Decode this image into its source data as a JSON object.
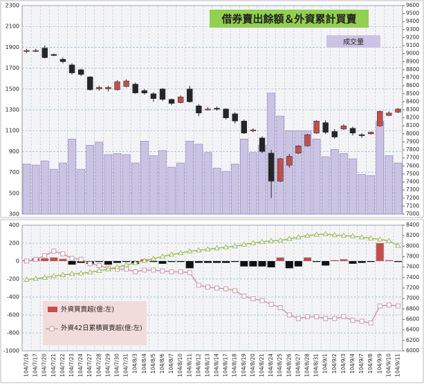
{
  "chart_data": [
    {
      "type": "candlestick",
      "title": "借券賣出餘額＆外資累計買賣",
      "series": [
        {
          "name": "成交量",
          "color": "#cbc3e3",
          "edge": "#8a7cb8",
          "values": [
            780,
            770,
            810,
            730,
            790,
            1020,
            730,
            960,
            990,
            870,
            880,
            870,
            790,
            1000,
            860,
            910,
            750,
            790,
            1000,
            970,
            890,
            740,
            710,
            780,
            1020,
            890,
            960,
            1460,
            1240,
            1100,
            1100,
            1100,
            1020,
            850,
            920,
            880,
            830,
            680,
            670,
            1190,
            860,
            790
          ]
        }
      ],
      "candles": {
        "axis": "y2",
        "up_color": "#c0504d",
        "down_color": "#262626",
        "open": [
          9030,
          9040,
          9070,
          8990,
          8930,
          8860,
          8800,
          8710,
          8560,
          8560,
          8550,
          8590,
          8620,
          8540,
          8500,
          8560,
          8430,
          8390,
          8560,
          8350,
          8300,
          8320,
          8310,
          8250,
          8160,
          8040,
          7950,
          7760,
          7410,
          7610,
          7760,
          7850,
          8010,
          8140,
          8030,
          8060,
          8070,
          7990,
          8000,
          8100,
          8230,
          8270
        ],
        "high": [
          9060,
          9060,
          9100,
          9000,
          8950,
          8880,
          8810,
          8720,
          8600,
          8600,
          8670,
          8680,
          8640,
          8560,
          8520,
          8570,
          8440,
          8480,
          8600,
          8370,
          8330,
          8340,
          8320,
          8270,
          8180,
          8070,
          7970,
          7800,
          7700,
          7750,
          7860,
          8000,
          8170,
          8170,
          8060,
          8120,
          8090,
          8010,
          8030,
          8290,
          8280,
          8320
        ],
        "low": [
          9010,
          9020,
          8940,
          8970,
          8880,
          8740,
          8720,
          8540,
          8540,
          8530,
          8540,
          8580,
          8500,
          8490,
          8400,
          8410,
          8360,
          8380,
          8390,
          8220,
          8290,
          8290,
          8180,
          8130,
          8000,
          8020,
          7760,
          7200,
          7400,
          7580,
          7750,
          7840,
          8000,
          8000,
          7940,
          8050,
          7980,
          7950,
          7990,
          8090,
          8220,
          8260
        ],
        "close": [
          9040,
          9040,
          8950,
          8980,
          8900,
          8760,
          8740,
          8550,
          8580,
          8580,
          8650,
          8660,
          8510,
          8510,
          8440,
          8430,
          8380,
          8460,
          8400,
          8260,
          8310,
          8310,
          8200,
          8160,
          8010,
          8050,
          7780,
          7410,
          7690,
          7720,
          7850,
          7990,
          8160,
          8020,
          7960,
          8100,
          8010,
          7980,
          8020,
          8280,
          8260,
          8310
        ]
      },
      "ylim": [
        300,
        2300
      ],
      "yticks": [
        300,
        500,
        700,
        900,
        1100,
        1300,
        1500,
        1700,
        1900,
        2100,
        2300
      ],
      "y2lim": [
        7000,
        9600
      ],
      "y2ticks": [
        7000,
        7100,
        7200,
        7300,
        7400,
        7500,
        7600,
        7700,
        7800,
        7900,
        8000,
        8100,
        8200,
        8300,
        8400,
        8500,
        8600,
        8700,
        8800,
        8900,
        9000,
        9100,
        9200,
        9300,
        9400,
        9500,
        9600
      ],
      "grid": true
    },
    {
      "type": "bar-line",
      "categories": [
        "104/7/16",
        "104/7/17",
        "104/7/20",
        "104/7/21",
        "104/7/22",
        "104/7/23",
        "104/7/24",
        "104/7/27",
        "104/7/28",
        "104/7/29",
        "104/7/30",
        "104/7/31",
        "104/8/3",
        "104/8/4",
        "104/8/5",
        "104/8/6",
        "104/8/7",
        "104/8/10",
        "104/8/11",
        "104/8/12",
        "104/8/13",
        "104/8/14",
        "104/8/17",
        "104/8/18",
        "104/8/19",
        "104/8/20",
        "104/8/21",
        "104/8/24",
        "104/8/25",
        "104/8/26",
        "104/8/27",
        "104/8/28",
        "104/8/31",
        "104/9/1",
        "104/9/2",
        "104/9/3",
        "104/9/4",
        "104/9/7",
        "104/9/8",
        "104/9/9",
        "104/9/10",
        "104/9/11"
      ],
      "series": [
        {
          "name": "外資買賣超(億:左)",
          "type": "bar",
          "color": "#c0504d",
          "negative_color": "#111111",
          "values": [
            10,
            30,
            30,
            40,
            25,
            -40,
            -20,
            -30,
            -10,
            -40,
            -20,
            -10,
            -30,
            20,
            -10,
            -30,
            -10,
            -10,
            -80,
            -20,
            -20,
            -20,
            -20,
            -10,
            -60,
            -60,
            -60,
            -70,
            40,
            -80,
            -60,
            40,
            -10,
            -50,
            10,
            20,
            -30,
            -20,
            -10,
            200,
            10,
            -10
          ]
        },
        {
          "name": "外資42日累積買賣超(億:左)",
          "type": "line",
          "marker": "square",
          "color": "#c99aa6",
          "values": [
            0,
            20,
            60,
            110,
            80,
            30,
            20,
            -30,
            -50,
            -80,
            -90,
            -90,
            -120,
            -100,
            -100,
            -110,
            -120,
            -120,
            -130,
            -270,
            -290,
            -300,
            -310,
            -330,
            -390,
            -420,
            -440,
            -480,
            -520,
            -600,
            -640,
            -620,
            -620,
            -640,
            -640,
            -620,
            -660,
            -670,
            -690,
            -500,
            -490,
            -500
          ]
        },
        {
          "type": "line",
          "marker": "triangle",
          "axis": "y2",
          "color": "#9bbb59",
          "values": [
            7360,
            7380,
            7400,
            7430,
            7450,
            7470,
            7480,
            7500,
            7530,
            7560,
            7600,
            7640,
            7680,
            7720,
            7760,
            7800,
            7840,
            7870,
            7900,
            7920,
            7940,
            7960,
            7980,
            8000,
            8030,
            8060,
            8080,
            8100,
            8110,
            8140,
            8170,
            8200,
            8220,
            8230,
            8210,
            8200,
            8190,
            8170,
            8150,
            8130,
            8100,
            8010
          ]
        }
      ],
      "ylim": [
        -1000,
        400
      ],
      "yticks": [
        -1000,
        -800,
        -600,
        -400,
        -200,
        0,
        200,
        400
      ],
      "y2lim": [
        6000,
        8400
      ],
      "y2ticks": [
        6000,
        6200,
        6400,
        6600,
        6800,
        7000,
        7200,
        7400,
        7600,
        7800,
        8000,
        8200,
        8400
      ],
      "legend": "lower left",
      "grid": true
    }
  ]
}
